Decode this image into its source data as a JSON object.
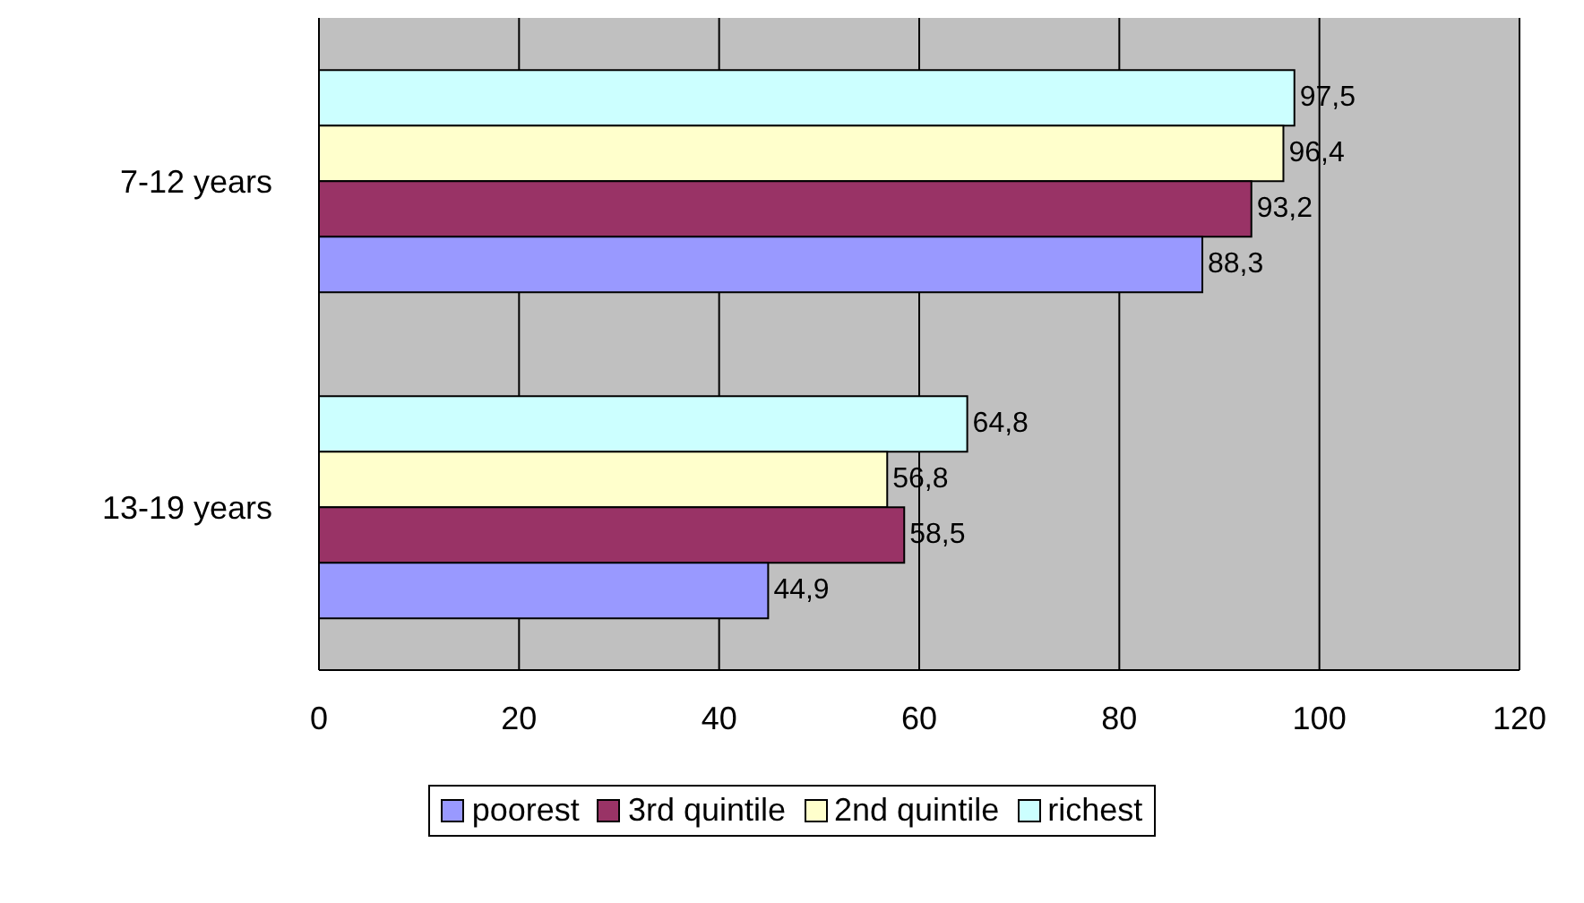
{
  "chart_data": {
    "type": "bar",
    "orientation": "horizontal",
    "categories": [
      "7-12 years",
      "13-19 years"
    ],
    "series": [
      {
        "name": "poorest",
        "color": "#9999ff",
        "values": [
          88.3,
          44.9
        ],
        "value_labels": [
          "88,3",
          "44,9"
        ]
      },
      {
        "name": "3rd quintile",
        "color": "#993366",
        "values": [
          93.2,
          58.5
        ],
        "value_labels": [
          "93,2",
          "58,5"
        ]
      },
      {
        "name": "2nd quintile",
        "color": "#ffffcc",
        "values": [
          96.4,
          56.8
        ],
        "value_labels": [
          "96,4",
          "56,8"
        ]
      },
      {
        "name": "richest",
        "color": "#ccffff",
        "values": [
          97.5,
          64.8
        ],
        "value_labels": [
          "97,5",
          "64,8"
        ]
      }
    ],
    "xlim": [
      0,
      120
    ],
    "xticks": [
      0,
      20,
      40,
      60,
      80,
      100,
      120
    ],
    "grid": "x",
    "legend": "bottom"
  }
}
